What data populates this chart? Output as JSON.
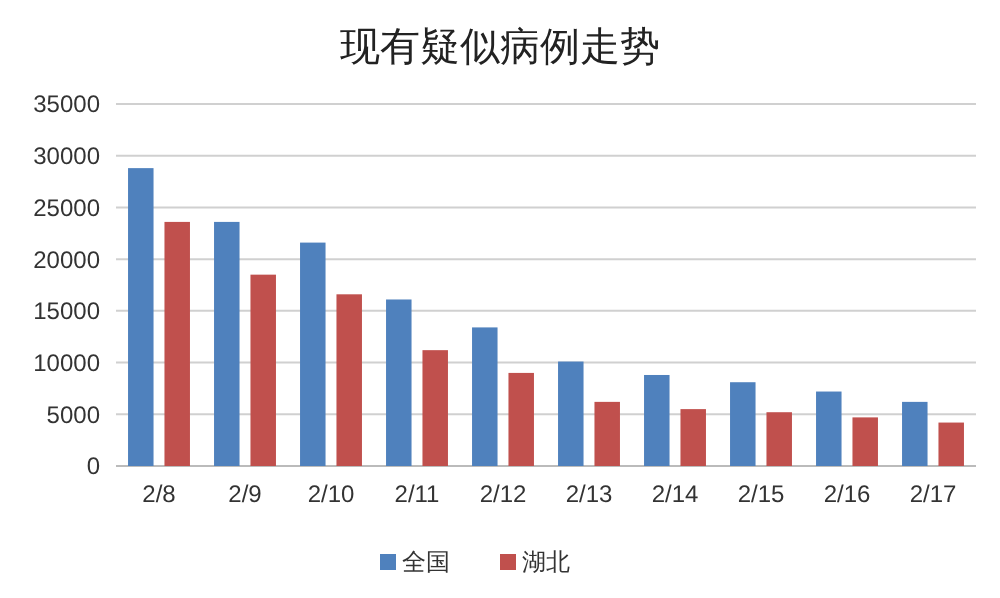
{
  "chart_data": {
    "type": "bar",
    "title": "现有疑似病例走势",
    "categories": [
      "2/8",
      "2/9",
      "2/10",
      "2/11",
      "2/12",
      "2/13",
      "2/14",
      "2/15",
      "2/16",
      "2/17"
    ],
    "series": [
      {
        "name": "全国",
        "color": "#4f81bd",
        "values": [
          28800,
          23600,
          21600,
          16100,
          13400,
          10100,
          8800,
          8100,
          7200,
          6200
        ]
      },
      {
        "name": "湖北",
        "color": "#c0504d",
        "values": [
          23600,
          18500,
          16600,
          11200,
          9000,
          6200,
          5500,
          5200,
          4700,
          4200
        ]
      }
    ],
    "ylim": [
      0,
      35000
    ],
    "yticks": [
      0,
      5000,
      10000,
      15000,
      20000,
      25000,
      30000,
      35000
    ],
    "grid": "y",
    "legend": "bottom"
  }
}
